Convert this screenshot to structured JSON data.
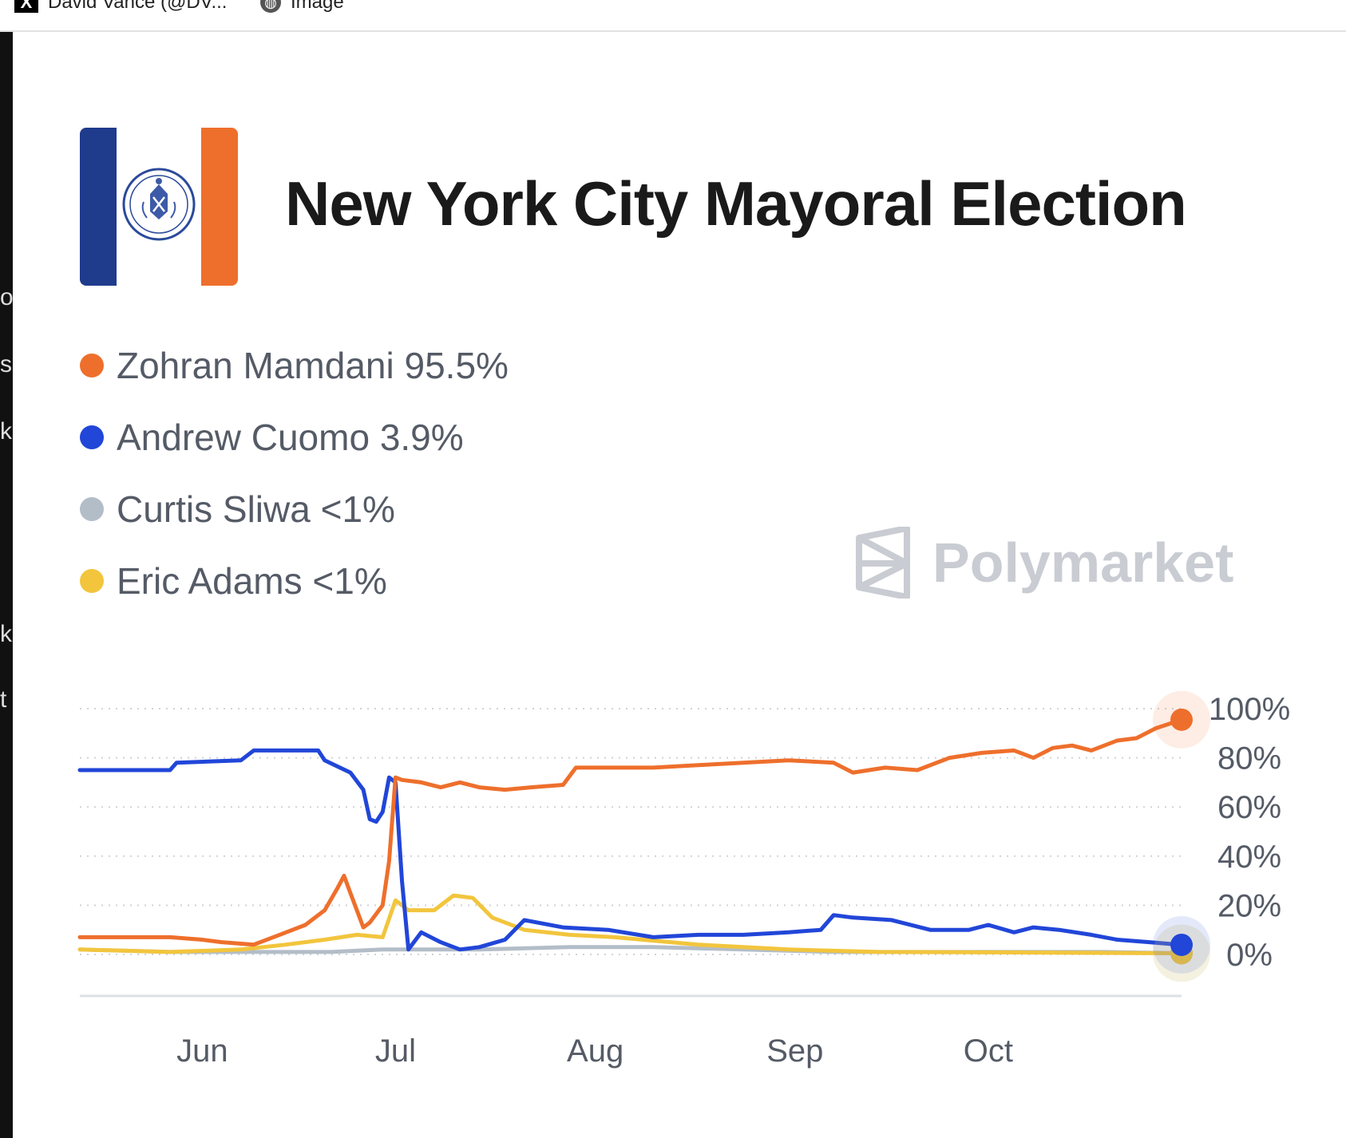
{
  "browser": {
    "tabs": [
      {
        "label": "David Vance (@DV...",
        "icon": "x-logo-icon"
      },
      {
        "label": "Image",
        "icon": "globe-icon"
      }
    ]
  },
  "left_edge_fragments": [
    "o",
    "s",
    "k",
    "k",
    "t"
  ],
  "header": {
    "title": "New York City Mayoral Election"
  },
  "legend": [
    {
      "label": "Zohran Mamdani 95.5%",
      "color": "#ee6f2c"
    },
    {
      "label": "Andrew Cuomo 3.9%",
      "color": "#2146d8"
    },
    {
      "label": "Curtis Sliwa <1%",
      "color": "#b3bdc8"
    },
    {
      "label": "Eric Adams <1%",
      "color": "#f2c53d"
    }
  ],
  "watermark": {
    "label": "Polymarket",
    "icon": "polymarket-logo-icon"
  },
  "chart_data": {
    "type": "line",
    "title": "New York City Mayoral Election",
    "xlabel": "",
    "ylabel": "",
    "x_ticks": [
      {
        "label": "Jun",
        "x": "2025-06-01"
      },
      {
        "label": "Jul",
        "x": "2025-07-01"
      },
      {
        "label": "Aug",
        "x": "2025-08-01"
      },
      {
        "label": "Sep",
        "x": "2025-09-01"
      },
      {
        "label": "Oct",
        "x": "2025-10-01"
      }
    ],
    "xlim": [
      "2025-05-13",
      "2025-10-31"
    ],
    "y_ticks": [
      "0%",
      "20%",
      "40%",
      "60%",
      "80%",
      "100%"
    ],
    "ylim": [
      0,
      100
    ],
    "grid": true,
    "series": [
      {
        "name": "Zohran Mamdani",
        "color": "#ee6f2c",
        "points": [
          [
            "2025-05-13",
            7
          ],
          [
            "2025-05-27",
            7
          ],
          [
            "2025-06-01",
            6
          ],
          [
            "2025-06-04",
            5
          ],
          [
            "2025-06-09",
            4
          ],
          [
            "2025-06-13",
            8
          ],
          [
            "2025-06-17",
            12
          ],
          [
            "2025-06-20",
            18
          ],
          [
            "2025-06-22",
            27
          ],
          [
            "2025-06-23",
            32
          ],
          [
            "2025-06-24",
            25
          ],
          [
            "2025-06-26",
            11
          ],
          [
            "2025-06-27",
            13
          ],
          [
            "2025-06-29",
            20
          ],
          [
            "2025-06-30",
            38
          ],
          [
            "2025-07-01",
            72
          ],
          [
            "2025-07-02",
            71
          ],
          [
            "2025-07-05",
            70
          ],
          [
            "2025-07-08",
            68
          ],
          [
            "2025-07-11",
            70
          ],
          [
            "2025-07-14",
            68
          ],
          [
            "2025-07-18",
            67
          ],
          [
            "2025-07-22",
            68
          ],
          [
            "2025-07-27",
            69
          ],
          [
            "2025-07-29",
            76
          ],
          [
            "2025-08-05",
            76
          ],
          [
            "2025-08-10",
            76
          ],
          [
            "2025-08-17",
            77
          ],
          [
            "2025-08-24",
            78
          ],
          [
            "2025-08-31",
            79
          ],
          [
            "2025-09-07",
            78
          ],
          [
            "2025-09-10",
            74
          ],
          [
            "2025-09-15",
            76
          ],
          [
            "2025-09-20",
            75
          ],
          [
            "2025-09-25",
            80
          ],
          [
            "2025-09-30",
            82
          ],
          [
            "2025-10-05",
            83
          ],
          [
            "2025-10-08",
            80
          ],
          [
            "2025-10-11",
            84
          ],
          [
            "2025-10-14",
            85
          ],
          [
            "2025-10-17",
            83
          ],
          [
            "2025-10-21",
            87
          ],
          [
            "2025-10-24",
            88
          ],
          [
            "2025-10-27",
            92
          ],
          [
            "2025-10-31",
            95.5
          ]
        ]
      },
      {
        "name": "Andrew Cuomo",
        "color": "#2146d8",
        "points": [
          [
            "2025-05-13",
            75
          ],
          [
            "2025-05-27",
            75
          ],
          [
            "2025-05-28",
            78
          ],
          [
            "2025-06-07",
            79
          ],
          [
            "2025-06-09",
            83
          ],
          [
            "2025-06-19",
            83
          ],
          [
            "2025-06-20",
            79
          ],
          [
            "2025-06-24",
            74
          ],
          [
            "2025-06-26",
            67
          ],
          [
            "2025-06-27",
            55
          ],
          [
            "2025-06-28",
            54
          ],
          [
            "2025-06-29",
            58
          ],
          [
            "2025-06-30",
            72
          ],
          [
            "2025-07-01",
            70
          ],
          [
            "2025-07-02",
            30
          ],
          [
            "2025-07-03",
            2
          ],
          [
            "2025-07-05",
            9
          ],
          [
            "2025-07-08",
            5
          ],
          [
            "2025-07-11",
            2
          ],
          [
            "2025-07-14",
            3
          ],
          [
            "2025-07-18",
            6
          ],
          [
            "2025-07-21",
            14
          ],
          [
            "2025-07-27",
            11
          ],
          [
            "2025-08-03",
            10
          ],
          [
            "2025-08-10",
            7
          ],
          [
            "2025-08-17",
            8
          ],
          [
            "2025-08-24",
            8
          ],
          [
            "2025-08-31",
            9
          ],
          [
            "2025-09-05",
            10
          ],
          [
            "2025-09-07",
            16
          ],
          [
            "2025-09-10",
            15
          ],
          [
            "2025-09-16",
            14
          ],
          [
            "2025-09-22",
            10
          ],
          [
            "2025-09-28",
            10
          ],
          [
            "2025-10-01",
            12
          ],
          [
            "2025-10-05",
            9
          ],
          [
            "2025-10-08",
            11
          ],
          [
            "2025-10-12",
            10
          ],
          [
            "2025-10-17",
            8
          ],
          [
            "2025-10-21",
            6
          ],
          [
            "2025-10-26",
            5
          ],
          [
            "2025-10-31",
            3.9
          ]
        ]
      },
      {
        "name": "Curtis Sliwa",
        "color": "#b3bdc8",
        "points": [
          [
            "2025-05-13",
            2
          ],
          [
            "2025-05-27",
            1
          ],
          [
            "2025-06-07",
            1
          ],
          [
            "2025-06-21",
            1
          ],
          [
            "2025-06-29",
            2
          ],
          [
            "2025-07-01",
            2
          ],
          [
            "2025-07-14",
            2
          ],
          [
            "2025-07-28",
            3
          ],
          [
            "2025-08-10",
            3
          ],
          [
            "2025-08-24",
            2
          ],
          [
            "2025-09-07",
            1
          ],
          [
            "2025-09-21",
            1
          ],
          [
            "2025-10-05",
            1
          ],
          [
            "2025-10-19",
            1
          ],
          [
            "2025-10-31",
            0.5
          ]
        ]
      },
      {
        "name": "Eric Adams",
        "color": "#f2c53d",
        "points": [
          [
            "2025-05-13",
            2
          ],
          [
            "2025-05-27",
            1
          ],
          [
            "2025-06-07",
            2
          ],
          [
            "2025-06-14",
            4
          ],
          [
            "2025-06-20",
            6
          ],
          [
            "2025-06-25",
            8
          ],
          [
            "2025-06-29",
            7
          ],
          [
            "2025-07-01",
            22
          ],
          [
            "2025-07-03",
            18
          ],
          [
            "2025-07-07",
            18
          ],
          [
            "2025-07-10",
            24
          ],
          [
            "2025-07-13",
            23
          ],
          [
            "2025-07-16",
            15
          ],
          [
            "2025-07-21",
            10
          ],
          [
            "2025-07-28",
            8
          ],
          [
            "2025-08-04",
            7
          ],
          [
            "2025-08-17",
            4
          ],
          [
            "2025-08-31",
            2
          ],
          [
            "2025-09-14",
            1
          ],
          [
            "2025-10-05",
            0.8
          ],
          [
            "2025-10-31",
            0.5
          ]
        ]
      }
    ],
    "end_markers": true
  }
}
